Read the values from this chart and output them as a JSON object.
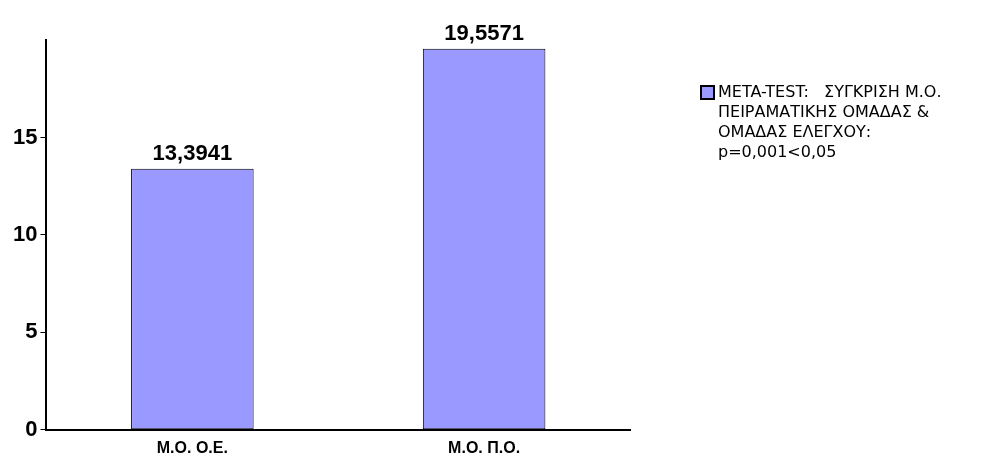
{
  "chart_data": {
    "type": "bar",
    "categories": [
      "Μ.Ο. Ο.Ε.",
      "Μ.Ο. Π.Ο."
    ],
    "series": [
      {
        "name": "META-TEST:   ΣΥΓΚΡΙΣΗ Μ.Ο. ΠΕΙΡΑΜΑΤΙΚΗΣ ΟΜΑΔΑΣ & ΟΜΑΔΑΣ ΕΛΕΓΧΟΥ: p=0,001<0,05",
        "color": "#9999ff",
        "values": [
          13.3941,
          19.5571
        ],
        "value_labels": [
          "13,3941",
          "19,5571"
        ]
      }
    ],
    "ylim": [
      0,
      20
    ],
    "yticks": [
      0,
      5,
      10,
      15
    ],
    "grid": false,
    "legend": "right"
  }
}
